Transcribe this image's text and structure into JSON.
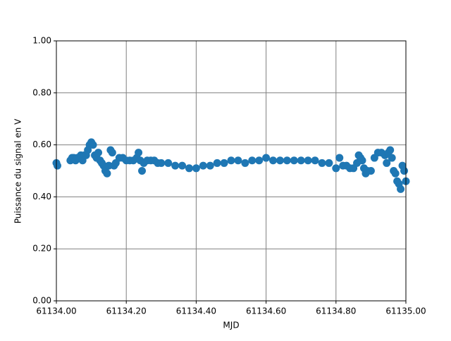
{
  "chart_data": {
    "type": "scatter",
    "xlabel": "MJD",
    "ylabel": "Puissance du signal en V",
    "color": "#1f77b4",
    "grid": true,
    "xlim": [
      61134.0,
      61135.0
    ],
    "ylim": [
      0,
      1
    ],
    "xticks": [
      {
        "value": 61134.0,
        "label": "61134.00"
      },
      {
        "value": 61134.2,
        "label": "61134.20"
      },
      {
        "value": 61134.4,
        "label": "61134.40"
      },
      {
        "value": 61134.6,
        "label": "61134.60"
      },
      {
        "value": 61134.8,
        "label": "61134.80"
      },
      {
        "value": 61135.0,
        "label": "61135.00"
      }
    ],
    "yticks": [
      {
        "value": 0,
        "label": "0.00"
      },
      {
        "value": 0.2,
        "label": "0.20"
      },
      {
        "value": 0.4,
        "label": "0.40"
      },
      {
        "value": 0.6,
        "label": "0.60"
      },
      {
        "value": 0.8,
        "label": "0.80"
      },
      {
        "value": 1.0,
        "label": "1.00"
      }
    ],
    "x": [
      61134.0,
      61134.003,
      61134.04,
      61134.045,
      61134.05,
      61134.055,
      61134.06,
      61134.065,
      61134.07,
      61134.075,
      61134.08,
      61134.085,
      61134.09,
      61134.095,
      61134.1,
      61134.105,
      61134.11,
      61134.115,
      61134.12,
      61134.125,
      61134.13,
      61134.135,
      61134.14,
      61134.145,
      61134.15,
      61134.155,
      61134.16,
      61134.165,
      61134.17,
      61134.18,
      61134.19,
      61134.2,
      61134.21,
      61134.22,
      61134.23,
      61134.235,
      61134.24,
      61134.245,
      61134.25,
      61134.26,
      61134.27,
      61134.28,
      61134.29,
      61134.3,
      61134.32,
      61134.34,
      61134.36,
      61134.38,
      61134.4,
      61134.42,
      61134.44,
      61134.46,
      61134.48,
      61134.5,
      61134.52,
      61134.54,
      61134.56,
      61134.58,
      61134.6,
      61134.62,
      61134.64,
      61134.66,
      61134.68,
      61134.7,
      61134.72,
      61134.74,
      61134.76,
      61134.78,
      61134.8,
      61134.81,
      61134.82,
      61134.83,
      61134.84,
      61134.85,
      61134.86,
      61134.865,
      61134.87,
      61134.875,
      61134.88,
      61134.885,
      61134.89,
      61134.9,
      61134.91,
      61134.92,
      61134.93,
      61134.94,
      61134.945,
      61134.95,
      61134.955,
      61134.96,
      61134.965,
      61134.97,
      61134.975,
      61134.98,
      61134.985,
      61134.99,
      61134.995,
      61135.0
    ],
    "values": [
      0.53,
      0.52,
      0.54,
      0.55,
      0.55,
      0.54,
      0.55,
      0.55,
      0.56,
      0.54,
      0.56,
      0.56,
      0.58,
      0.6,
      0.61,
      0.6,
      0.56,
      0.55,
      0.57,
      0.54,
      0.53,
      0.52,
      0.5,
      0.49,
      0.52,
      0.58,
      0.57,
      0.52,
      0.53,
      0.55,
      0.55,
      0.54,
      0.54,
      0.54,
      0.55,
      0.57,
      0.54,
      0.5,
      0.53,
      0.54,
      0.54,
      0.54,
      0.53,
      0.53,
      0.53,
      0.52,
      0.52,
      0.51,
      0.51,
      0.52,
      0.52,
      0.53,
      0.53,
      0.54,
      0.54,
      0.53,
      0.54,
      0.54,
      0.55,
      0.54,
      0.54,
      0.54,
      0.54,
      0.54,
      0.54,
      0.54,
      0.53,
      0.53,
      0.51,
      0.55,
      0.52,
      0.52,
      0.51,
      0.51,
      0.53,
      0.56,
      0.55,
      0.54,
      0.51,
      0.49,
      0.5,
      0.5,
      0.55,
      0.57,
      0.57,
      0.56,
      0.53,
      0.57,
      0.58,
      0.55,
      0.5,
      0.49,
      0.46,
      0.45,
      0.43,
      0.52,
      0.5,
      0.46
    ]
  }
}
